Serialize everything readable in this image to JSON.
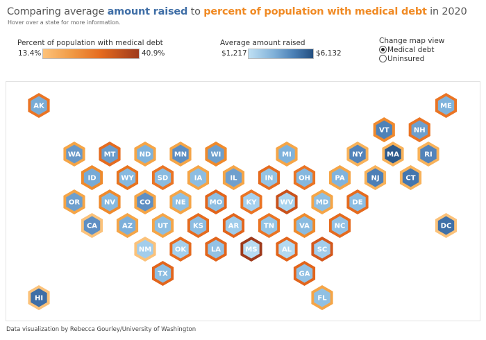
{
  "header": {
    "title_prefix": "Comparing average ",
    "title_blue": "amount raised",
    "title_mid": " to ",
    "title_orange": "percent of population with medical debt",
    "title_suffix": " in 2020",
    "subtitle": "Hover over a state for more information."
  },
  "legends": {
    "medical_debt": {
      "label": "Percent of population with medical debt",
      "min": "13.4%",
      "max": "40.9%"
    },
    "amount_raised": {
      "label": "Average amount raised",
      "min": "$1,217",
      "max": "$6,132"
    }
  },
  "view_control": {
    "label": "Change map view",
    "options": [
      {
        "label": "Medical debt",
        "selected": true
      },
      {
        "label": "Uninsured",
        "selected": false
      }
    ]
  },
  "colors": {
    "title_blue": "#3f6ea6",
    "title_orange": "#f08a24"
  },
  "chart_data": {
    "type": "hex-tile-map",
    "title": "Comparing average amount raised to percent of population with medical debt in 2020",
    "encoding": {
      "border_color": "percent of population with medical debt (13.4% light orange to 40.9% dark red-brown)",
      "fill_color": "average amount raised ($1,217 light blue to $6,132 dark blue)"
    },
    "states": [
      {
        "abbr": "AK",
        "row": 0,
        "col": 0,
        "border": "#ea7424",
        "fill": "#79acd6"
      },
      {
        "abbr": "ME",
        "row": 0,
        "col": 23,
        "border": "#ea7424",
        "fill": "#7fb3dc"
      },
      {
        "abbr": "VT",
        "row": 1,
        "col": 19.5,
        "border": "#f08a2e",
        "fill": "#4f82b8"
      },
      {
        "abbr": "NH",
        "row": 1,
        "col": 21.5,
        "border": "#ea7424",
        "fill": "#6e9fcd"
      },
      {
        "abbr": "WA",
        "row": 2,
        "col": 2,
        "border": "#f5a547",
        "fill": "#6898c8"
      },
      {
        "abbr": "MT",
        "row": 2,
        "col": 4,
        "border": "#e56b1f",
        "fill": "#6b9dcb"
      },
      {
        "abbr": "ND",
        "row": 2,
        "col": 6,
        "border": "#f5a547",
        "fill": "#7eb2dc"
      },
      {
        "abbr": "MN",
        "row": 2,
        "col": 8,
        "border": "#f5a547",
        "fill": "#5d8ec2"
      },
      {
        "abbr": "WI",
        "row": 2,
        "col": 10,
        "border": "#ef8a2c",
        "fill": "#6d9fcd"
      },
      {
        "abbr": "MI",
        "row": 2,
        "col": 14,
        "border": "#f5a547",
        "fill": "#7eb2dc"
      },
      {
        "abbr": "NY",
        "row": 2,
        "col": 18,
        "border": "#f8b25a",
        "fill": "#5283ba"
      },
      {
        "abbr": "MA",
        "row": 2,
        "col": 20,
        "border": "#f8b25a",
        "fill": "#2c5a8c"
      },
      {
        "abbr": "RI",
        "row": 2,
        "col": 22,
        "border": "#f8b25a",
        "fill": "#5283ba"
      },
      {
        "abbr": "ID",
        "row": 3,
        "col": 3,
        "border": "#ef8a2c",
        "fill": "#77aad6"
      },
      {
        "abbr": "WY",
        "row": 3,
        "col": 5,
        "border": "#e8741f",
        "fill": "#86b9df"
      },
      {
        "abbr": "SD",
        "row": 3,
        "col": 7,
        "border": "#ea7424",
        "fill": "#8abbe0"
      },
      {
        "abbr": "IA",
        "row": 3,
        "col": 9,
        "border": "#f5a547",
        "fill": "#8cbde2"
      },
      {
        "abbr": "IL",
        "row": 3,
        "col": 11,
        "border": "#f5a547",
        "fill": "#6f9fcd"
      },
      {
        "abbr": "IN",
        "row": 3,
        "col": 13,
        "border": "#e56b1f",
        "fill": "#94c3e5"
      },
      {
        "abbr": "OH",
        "row": 3,
        "col": 15,
        "border": "#ea7424",
        "fill": "#85b7de"
      },
      {
        "abbr": "PA",
        "row": 3,
        "col": 17,
        "border": "#f5a547",
        "fill": "#80b3dc"
      },
      {
        "abbr": "NJ",
        "row": 3,
        "col": 19,
        "border": "#f8b25a",
        "fill": "#4d7fb6"
      },
      {
        "abbr": "CT",
        "row": 3,
        "col": 21,
        "border": "#f8b25a",
        "fill": "#4476ae"
      },
      {
        "abbr": "OR",
        "row": 4,
        "col": 2,
        "border": "#f5a547",
        "fill": "#6e9fcd"
      },
      {
        "abbr": "NV",
        "row": 4,
        "col": 4,
        "border": "#ef8a2c",
        "fill": "#86b9df"
      },
      {
        "abbr": "CO",
        "row": 4,
        "col": 6,
        "border": "#f5a547",
        "fill": "#5e8fc3"
      },
      {
        "abbr": "NE",
        "row": 4,
        "col": 8,
        "border": "#f5a547",
        "fill": "#8fc0e3"
      },
      {
        "abbr": "MO",
        "row": 4,
        "col": 10,
        "border": "#e2651c",
        "fill": "#8dbee2"
      },
      {
        "abbr": "KY",
        "row": 4,
        "col": 12,
        "border": "#ea7424",
        "fill": "#a6d1ee"
      },
      {
        "abbr": "WV",
        "row": 4,
        "col": 14,
        "border": "#c9521c",
        "fill": "#aad4ef"
      },
      {
        "abbr": "MD",
        "row": 4,
        "col": 16,
        "border": "#f5a547",
        "fill": "#8fbfe2"
      },
      {
        "abbr": "DE",
        "row": 4,
        "col": 18,
        "border": "#e56b1f",
        "fill": "#8cbde2"
      },
      {
        "abbr": "CA",
        "row": 5,
        "col": 3,
        "border": "#fbc27a",
        "fill": "#5e8fc3"
      },
      {
        "abbr": "AZ",
        "row": 5,
        "col": 5,
        "border": "#f5a547",
        "fill": "#7cafda"
      },
      {
        "abbr": "UT",
        "row": 5,
        "col": 7,
        "border": "#f5a547",
        "fill": "#8dbee2"
      },
      {
        "abbr": "KS",
        "row": 5,
        "col": 9,
        "border": "#e56b1f",
        "fill": "#8cbde2"
      },
      {
        "abbr": "AR",
        "row": 5,
        "col": 11,
        "border": "#e2651c",
        "fill": "#9fcceb"
      },
      {
        "abbr": "TN",
        "row": 5,
        "col": 13,
        "border": "#ea7424",
        "fill": "#95c5e6"
      },
      {
        "abbr": "VA",
        "row": 5,
        "col": 15,
        "border": "#ef8a2c",
        "fill": "#8abbe0"
      },
      {
        "abbr": "NC",
        "row": 5,
        "col": 17,
        "border": "#e56b1f",
        "fill": "#93c2e5"
      },
      {
        "abbr": "DC",
        "row": 5,
        "col": 23,
        "border": "#fbc27a",
        "fill": "#3f70a8"
      },
      {
        "abbr": "NM",
        "row": 6,
        "col": 6,
        "border": "#fbc27a",
        "fill": "#a2cdec"
      },
      {
        "abbr": "OK",
        "row": 6,
        "col": 8,
        "border": "#e56b1f",
        "fill": "#a4cfec"
      },
      {
        "abbr": "LA",
        "row": 6,
        "col": 10,
        "border": "#e2651c",
        "fill": "#93c2e5"
      },
      {
        "abbr": "MS",
        "row": 6,
        "col": 12,
        "border": "#9e3a1c",
        "fill": "#b7dbf2"
      },
      {
        "abbr": "AL",
        "row": 6,
        "col": 14,
        "border": "#e2651c",
        "fill": "#b3d9f1"
      },
      {
        "abbr": "SC",
        "row": 6,
        "col": 16,
        "border": "#d4581c",
        "fill": "#a2cdec"
      },
      {
        "abbr": "TX",
        "row": 7,
        "col": 7,
        "border": "#e2651c",
        "fill": "#8dbee2"
      },
      {
        "abbr": "GA",
        "row": 7,
        "col": 15,
        "border": "#e2651c",
        "fill": "#93c2e5"
      },
      {
        "abbr": "HI",
        "row": 8,
        "col": 0,
        "border": "#fbc27a",
        "fill": "#3e6ea6"
      },
      {
        "abbr": "FL",
        "row": 8,
        "col": 16,
        "border": "#f5a547",
        "fill": "#90c0e3"
      }
    ]
  },
  "footer": {
    "credit": "Data visualization by Rebecca Gourley/University of Washington"
  }
}
